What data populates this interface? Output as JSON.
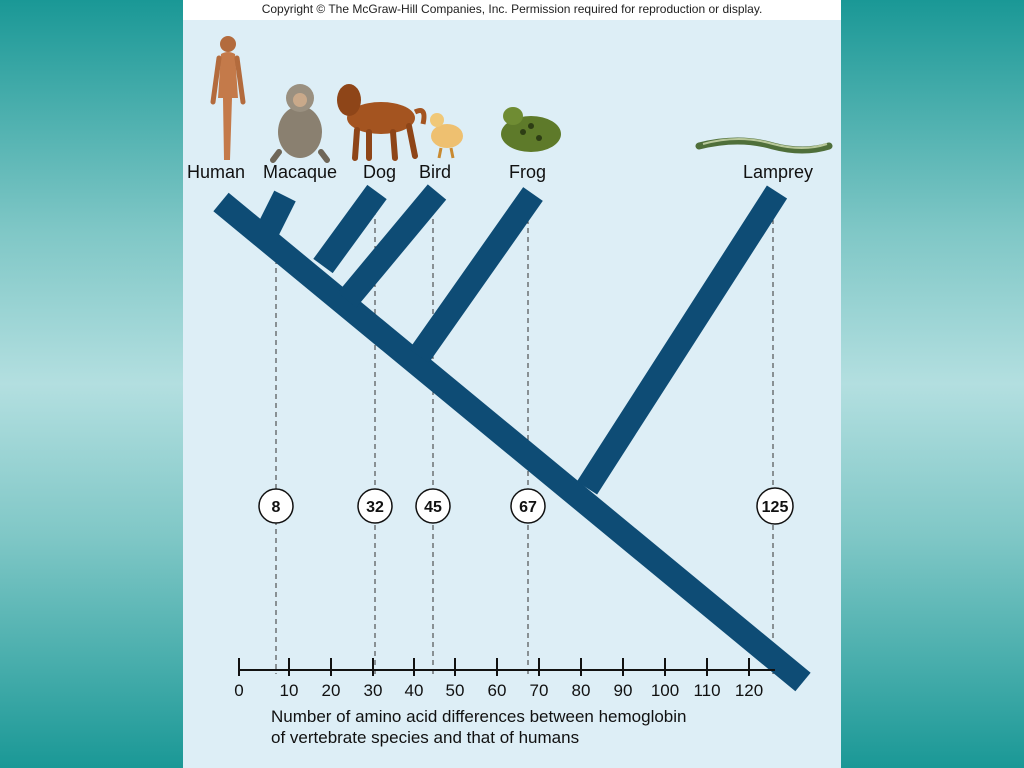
{
  "copyright": "Copyright © The McGraw-Hill Companies, Inc. Permission required for reproduction or display.",
  "species": [
    {
      "name": "Human",
      "icon": "human-icon",
      "difference": null
    },
    {
      "name": "Macaque",
      "icon": "macaque-icon",
      "difference": 8
    },
    {
      "name": "Dog",
      "icon": "dog-icon",
      "difference": 32
    },
    {
      "name": "Bird",
      "icon": "bird-icon",
      "difference": 45
    },
    {
      "name": "Frog",
      "icon": "frog-icon",
      "difference": 67
    },
    {
      "name": "Lamprey",
      "icon": "lamprey-icon",
      "difference": 125
    }
  ],
  "difference_labels": [
    "8",
    "32",
    "45",
    "67",
    "125"
  ],
  "axis": {
    "ticks": [
      "0",
      "10",
      "20",
      "30",
      "40",
      "50",
      "60",
      "70",
      "80",
      "90",
      "100",
      "110",
      "120"
    ],
    "title_line1": "Number of amino acid differences between hemoglobin",
    "title_line2": "of vertebrate species and that of humans"
  },
  "colors": {
    "tree": "#0e4c75",
    "panel": "#ddeef6",
    "background": "#1a9896"
  }
}
